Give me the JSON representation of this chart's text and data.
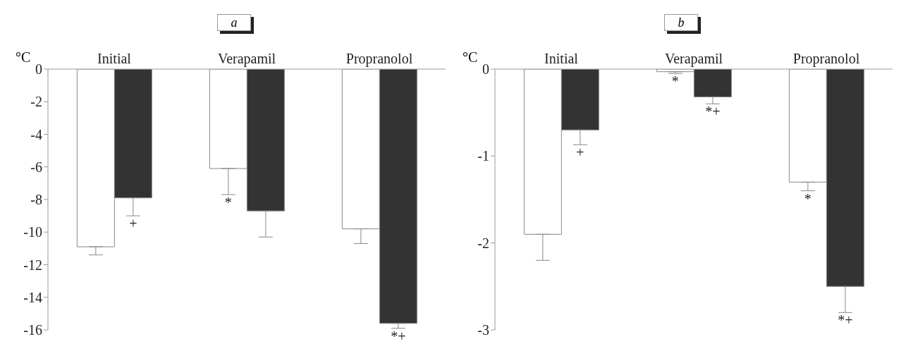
{
  "chart_data": [
    {
      "type": "bar",
      "title": "a",
      "ylabel": "°C",
      "categories": [
        "Initial",
        "Verapamil",
        "Propranolol"
      ],
      "ylim": [
        -16,
        0
      ],
      "yticks": [
        -16,
        -14,
        -12,
        -10,
        -8,
        -6,
        -4,
        -2,
        0
      ],
      "series": [
        {
          "color": "#ffffff",
          "values": [
            -10.9,
            -6.1,
            -9.8
          ],
          "errors": [
            [
              -11.4,
              -10.9
            ],
            [
              -7.7,
              -6.1
            ],
            [
              -10.7,
              -9.8
            ]
          ],
          "value_labels": [
            null,
            "*",
            null
          ]
        },
        {
          "color": "#333333",
          "values": [
            -7.9,
            -8.7,
            -15.6
          ],
          "errors": [
            [
              -9.0,
              -7.9
            ],
            [
              -10.3,
              -8.7
            ],
            [
              -15.9,
              -15.6
            ]
          ],
          "value_labels": [
            "+",
            null,
            "*+"
          ]
        }
      ]
    },
    {
      "type": "bar",
      "title": "b",
      "ylabel": "°C",
      "categories": [
        "Initial",
        "Verapamil",
        "Propranolol"
      ],
      "ylim": [
        -3,
        0
      ],
      "yticks": [
        -3,
        -2,
        -1,
        0
      ],
      "series": [
        {
          "color": "#ffffff",
          "values": [
            -1.9,
            -0.03,
            -1.3
          ],
          "errors": [
            [
              -2.2,
              -1.9
            ],
            [
              -0.05,
              -0.03
            ],
            [
              -1.4,
              -1.3
            ]
          ],
          "value_labels": [
            null,
            "*",
            "*"
          ]
        },
        {
          "color": "#333333",
          "values": [
            -0.7,
            -0.32,
            -2.5
          ],
          "errors": [
            [
              -0.87,
              -0.7
            ],
            [
              -0.4,
              -0.32
            ],
            [
              -2.8,
              -2.5
            ]
          ],
          "value_labels": [
            "+",
            "*+",
            "*+"
          ]
        }
      ]
    }
  ]
}
